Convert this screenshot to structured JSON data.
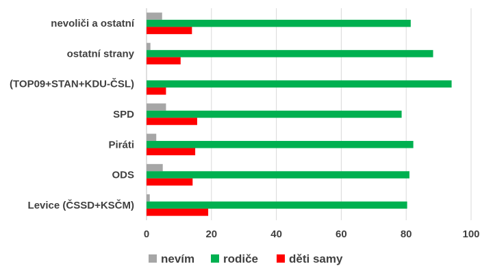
{
  "chart_data": {
    "type": "bar",
    "orientation": "horizontal",
    "categories": [
      "nevoliči a ostatní",
      "ostatní strany",
      "(TOP09+STAN+KDU-ČSL)",
      "SPD",
      "Piráti",
      "ODS",
      "Levice (ČSSD+KSČM)"
    ],
    "series": [
      {
        "name": "nevím",
        "color": "#a6a6a6",
        "values": [
          4.8,
          1.2,
          0,
          6.0,
          3.0,
          5.0,
          1.0
        ]
      },
      {
        "name": "rodiče",
        "color": "#00b050",
        "values": [
          81.4,
          88.3,
          94.0,
          78.6,
          82.2,
          81.0,
          80.3
        ]
      },
      {
        "name": "děti samy",
        "color": "#ff0000",
        "values": [
          14.0,
          10.5,
          6.0,
          15.6,
          15.0,
          14.2,
          19.0
        ]
      }
    ],
    "xlim": [
      0,
      100
    ],
    "xticks": [
      "0",
      "20",
      "40",
      "60",
      "80",
      "100"
    ],
    "xtick_values": [
      0,
      20,
      40,
      60,
      80,
      100
    ],
    "grid": true,
    "legend_position": "bottom"
  }
}
